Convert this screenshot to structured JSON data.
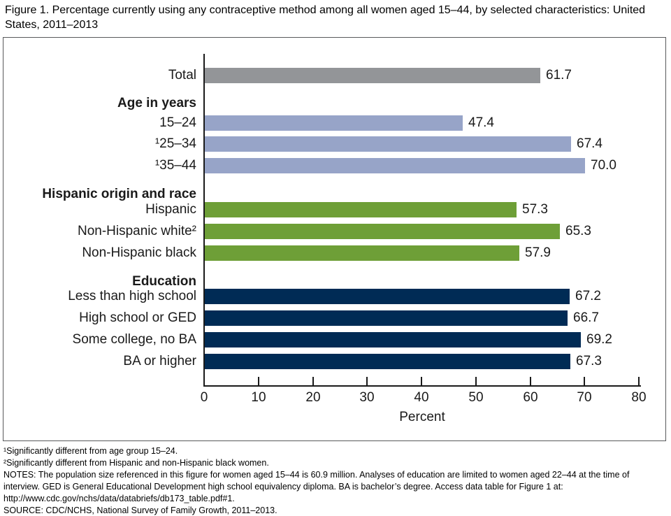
{
  "chart_data": {
    "type": "bar",
    "orientation": "horizontal",
    "title": "Figure 1. Percentage currently using any contraceptive method among all women aged 15–44, by selected characteristics: United States, 2011–2013",
    "xlabel": "Percent",
    "xlim": [
      0,
      80
    ],
    "x_ticks": [
      0,
      10,
      20,
      30,
      40,
      50,
      60,
      70,
      80
    ],
    "grid": false,
    "legend": "none",
    "colors": {
      "total": "#939598",
      "age": "#97a4c8",
      "race": "#6e9f37",
      "education": "#002b55"
    },
    "rows": [
      {
        "type": "bar",
        "label": "Total",
        "value": 61.7,
        "display": "61.7",
        "series": "total"
      },
      {
        "type": "header",
        "label": "Age in years"
      },
      {
        "type": "bar",
        "label": "15–24",
        "value": 47.4,
        "display": "47.4",
        "series": "age"
      },
      {
        "type": "bar",
        "label": "¹25–34",
        "value": 67.4,
        "display": "67.4",
        "series": "age"
      },
      {
        "type": "bar",
        "label": "¹35–44",
        "value": 70.0,
        "display": "70.0",
        "series": "age"
      },
      {
        "type": "header",
        "label": "Hispanic origin and race"
      },
      {
        "type": "bar",
        "label": "Hispanic",
        "value": 57.3,
        "display": "57.3",
        "series": "race"
      },
      {
        "type": "bar",
        "label": "Non-Hispanic white²",
        "value": 65.3,
        "display": "65.3",
        "series": "race"
      },
      {
        "type": "bar",
        "label": "Non-Hispanic black",
        "value": 57.9,
        "display": "57.9",
        "series": "race"
      },
      {
        "type": "header",
        "label": "Education"
      },
      {
        "type": "bar",
        "label": "Less than high school",
        "value": 67.2,
        "display": "67.2",
        "series": "education"
      },
      {
        "type": "bar",
        "label": "High school or GED",
        "value": 66.7,
        "display": "66.7",
        "series": "education"
      },
      {
        "type": "bar",
        "label": "Some college, no BA",
        "value": 69.2,
        "display": "69.2",
        "series": "education"
      },
      {
        "type": "bar",
        "label": "BA or higher",
        "value": 67.3,
        "display": "67.3",
        "series": "education"
      }
    ]
  },
  "footnotes": [
    "¹Significantly different from age group 15–24.",
    "²Significantly different from Hispanic and non-Hispanic black women.",
    "NOTES: The population size referenced in this figure for women aged 15–44 is 60.9 million. Analyses of education are limited to women aged 22–44 at the time of interview. GED is General Educational Development high school equivalency diploma. BA is bachelor’s degree. Access data table for Figure 1 at: http://www.cdc.gov/nchs/data/databriefs/db173_table.pdf#1.",
    "SOURCE: CDC/NCHS, National Survey of Family Growth, 2011–2013."
  ]
}
